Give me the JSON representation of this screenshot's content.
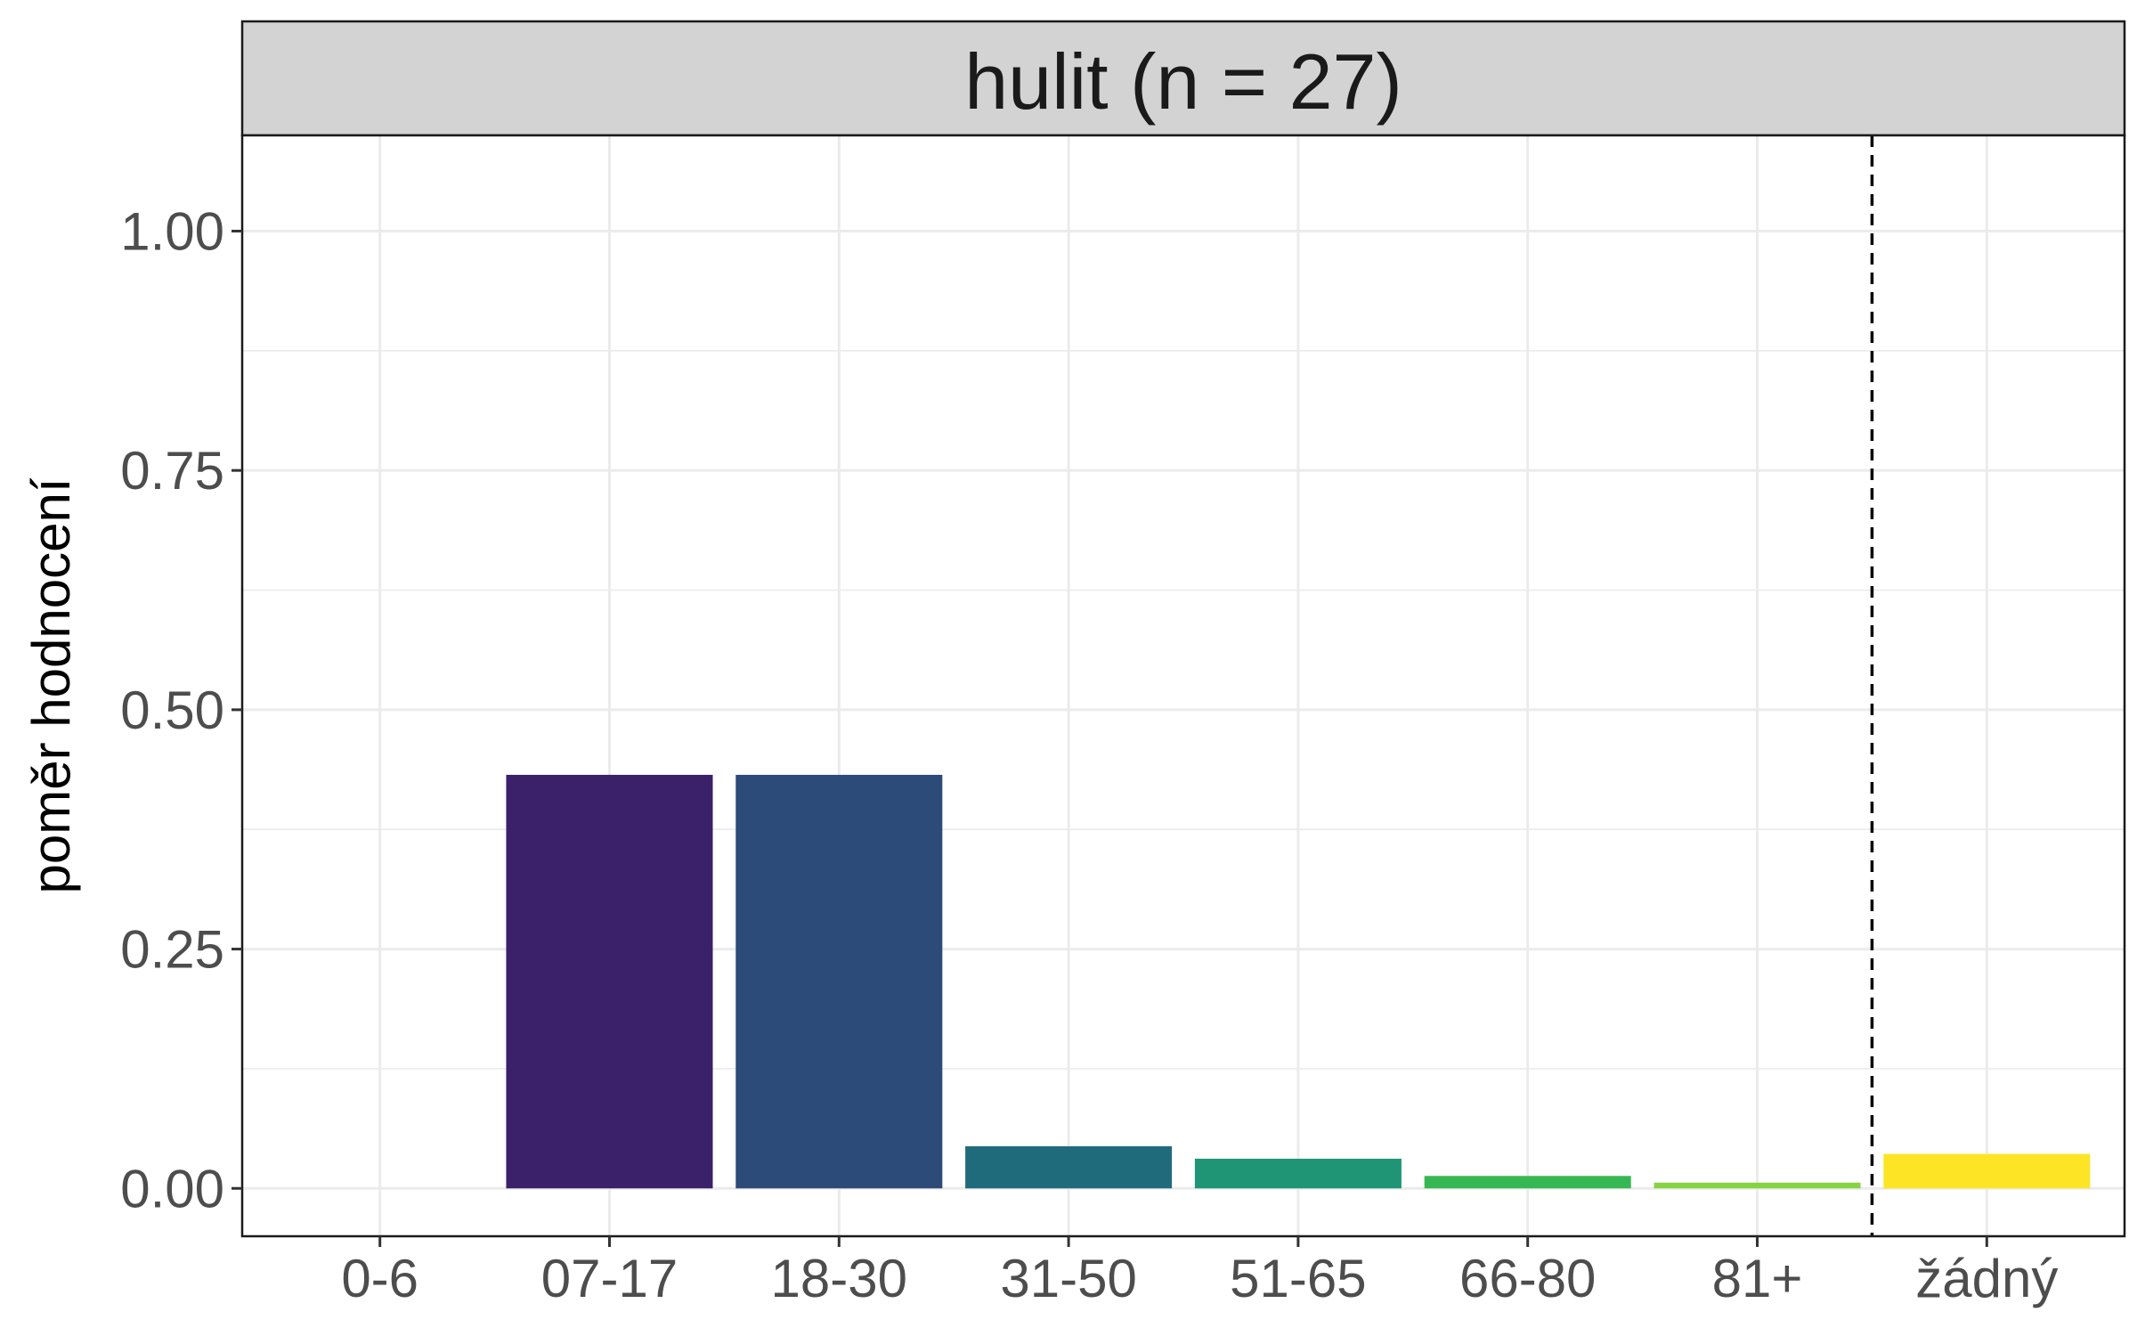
{
  "chart_data": {
    "type": "bar",
    "title": "hulit (n = 27)",
    "xlabel": "",
    "ylabel": "poměr hodnocení",
    "categories": [
      "0-6",
      "07-17",
      "18-30",
      "31-50",
      "51-65",
      "66-80",
      "81+",
      "žádný"
    ],
    "values": [
      0.0,
      0.432,
      0.432,
      0.044,
      0.031,
      0.013,
      0.006,
      0.036
    ],
    "colors": [
      "#440154",
      "#3a2169",
      "#2c4b78",
      "#206b7b",
      "#1f9576",
      "#37b753",
      "#86d342",
      "#fde525"
    ],
    "ylim": [
      -0.05,
      1.1
    ],
    "yticks": [
      0.0,
      0.25,
      0.5,
      0.75,
      1.0
    ],
    "ytick_labels": [
      "0.00",
      "0.25",
      "0.50",
      "0.75",
      "1.00"
    ],
    "grid": true,
    "reference_line": {
      "between": [
        "81+",
        "žádný"
      ],
      "style": "dashed",
      "color": "#000000"
    },
    "strip_fill": "#d3d3d3"
  }
}
